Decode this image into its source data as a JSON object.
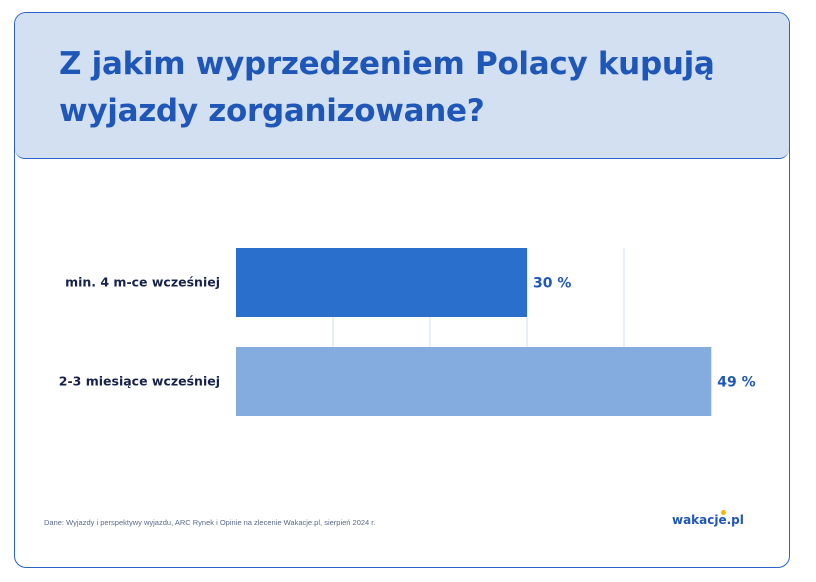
{
  "title": "Z jakim wyprzedzeniem Polacy kupują wyjazdy zorganizowane?",
  "source": "Dane: Wyjazdy i perspektywy wyjazdu, ARC Rynek i Opinie na zlecenie Wakacje.pl, sierpień 2024 r.",
  "logo": "wakacje.pl",
  "colors": {
    "accent": "#1f57b8",
    "bar_dark": "#2a6fcb",
    "bar_light": "#85acdf",
    "header_bg": "#d3e0f2"
  },
  "chart_data": {
    "type": "bar",
    "orientation": "horizontal",
    "categories": [
      "min. 4 m-ce wcześniej",
      "2-3 miesiące wcześniej"
    ],
    "values": [
      30,
      49
    ],
    "value_labels": [
      "30 %",
      "49 %"
    ],
    "unit": "%",
    "xlim": [
      0,
      50
    ],
    "grid": true,
    "bar_colors": [
      "#2a6fcb",
      "#85acdf"
    ]
  }
}
